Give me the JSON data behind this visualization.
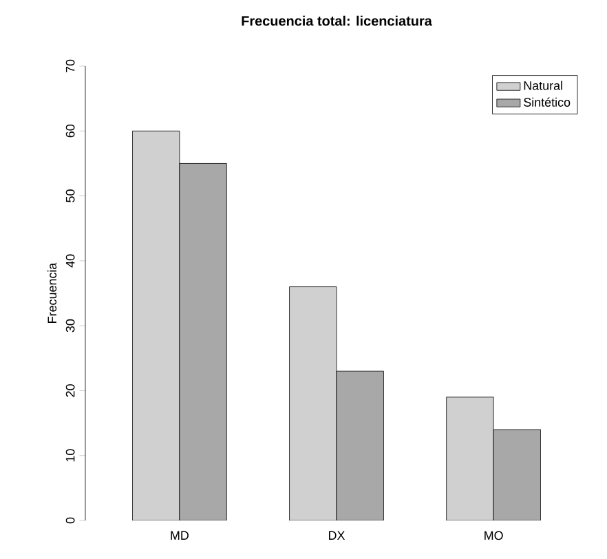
{
  "chart_data": {
    "type": "bar",
    "title": "Frecuencia total: licenciatura",
    "ylabel": "Frecuencia",
    "categories": [
      "MD",
      "DX",
      "MO"
    ],
    "series": [
      {
        "name": "Natural",
        "color": "#d0d0d0",
        "values": [
          60,
          36,
          19
        ]
      },
      {
        "name": "Sintético",
        "color": "#a8a8a8",
        "values": [
          55,
          23,
          14
        ]
      }
    ],
    "ylim": [
      0,
      70
    ],
    "yticks": [
      0,
      10,
      20,
      30,
      40,
      50,
      60,
      70
    ],
    "legend": "top right",
    "grid": false
  }
}
